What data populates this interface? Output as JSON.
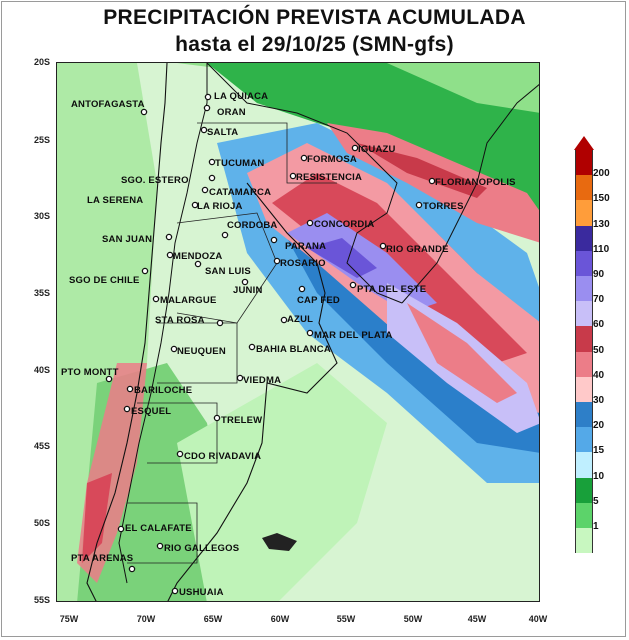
{
  "title_line1": "PRECIPITACIÓN PREVISTA ACUMULADA",
  "title_line2": "hasta el 29/10/25 (SMN-gfs)",
  "lat_labels": [
    "20S",
    "25S",
    "30S",
    "35S",
    "40S",
    "45S",
    "50S",
    "55S"
  ],
  "lon_labels": [
    "75W",
    "70W",
    "65W",
    "60W",
    "55W",
    "50W",
    "45W",
    "40W"
  ],
  "legend": {
    "levels": [
      "200",
      "150",
      "130",
      "110",
      "90",
      "70",
      "60",
      "50",
      "40",
      "30",
      "20",
      "15",
      "10",
      "5",
      "1"
    ],
    "colors": [
      "#b00000",
      "#e86a10",
      "#ff9d3a",
      "#3a2a9e",
      "#6a55d8",
      "#9a8ef0",
      "#c8bff8",
      "#c83a4a",
      "#ec7d88",
      "#ffc9c9",
      "#2e7fc8",
      "#54a9e8",
      "#bfefff",
      "#18a03a",
      "#5cd36a",
      "#c8f7c0"
    ]
  },
  "cities": [
    {
      "name": "ANTOFAGASTA"
    },
    {
      "name": "LA QUIACA"
    },
    {
      "name": "ORAN"
    },
    {
      "name": "SALTA"
    },
    {
      "name": "IGUAZU"
    },
    {
      "name": "FORMOSA"
    },
    {
      "name": "TUCUMAN"
    },
    {
      "name": "SGO. ESTERO"
    },
    {
      "name": "CATAMARCA"
    },
    {
      "name": "RESISTENCIA"
    },
    {
      "name": "FLORIANOPOLIS"
    },
    {
      "name": "LA SERENA"
    },
    {
      "name": "LA RIOJA"
    },
    {
      "name": "TORRES"
    },
    {
      "name": "CORDOBA"
    },
    {
      "name": "CONCORDIA"
    },
    {
      "name": "SAN JUAN"
    },
    {
      "name": "PARANA"
    },
    {
      "name": "RIO GRANDE"
    },
    {
      "name": "MENDOZA"
    },
    {
      "name": "SAN LUIS"
    },
    {
      "name": "ROSARIO"
    },
    {
      "name": "SGO DE CHILE"
    },
    {
      "name": "JUNIN"
    },
    {
      "name": "PTA DEL ESTE"
    },
    {
      "name": "CAP FED"
    },
    {
      "name": "MALARGUE"
    },
    {
      "name": "STA ROSA"
    },
    {
      "name": "AZUL"
    },
    {
      "name": "MAR DEL PLATA"
    },
    {
      "name": "NEUQUEN"
    },
    {
      "name": "BAHIA BLANCA"
    },
    {
      "name": "PTO MONTT"
    },
    {
      "name": "VIEDMA"
    },
    {
      "name": "BARILOCHE"
    },
    {
      "name": "ESQUEL"
    },
    {
      "name": "TRELEW"
    },
    {
      "name": "CDO RIVADAVIA"
    },
    {
      "name": "EL CALAFATE"
    },
    {
      "name": "RIO GALLEGOS"
    },
    {
      "name": "PTA ARENAS"
    },
    {
      "name": "USHUAIA"
    }
  ]
}
